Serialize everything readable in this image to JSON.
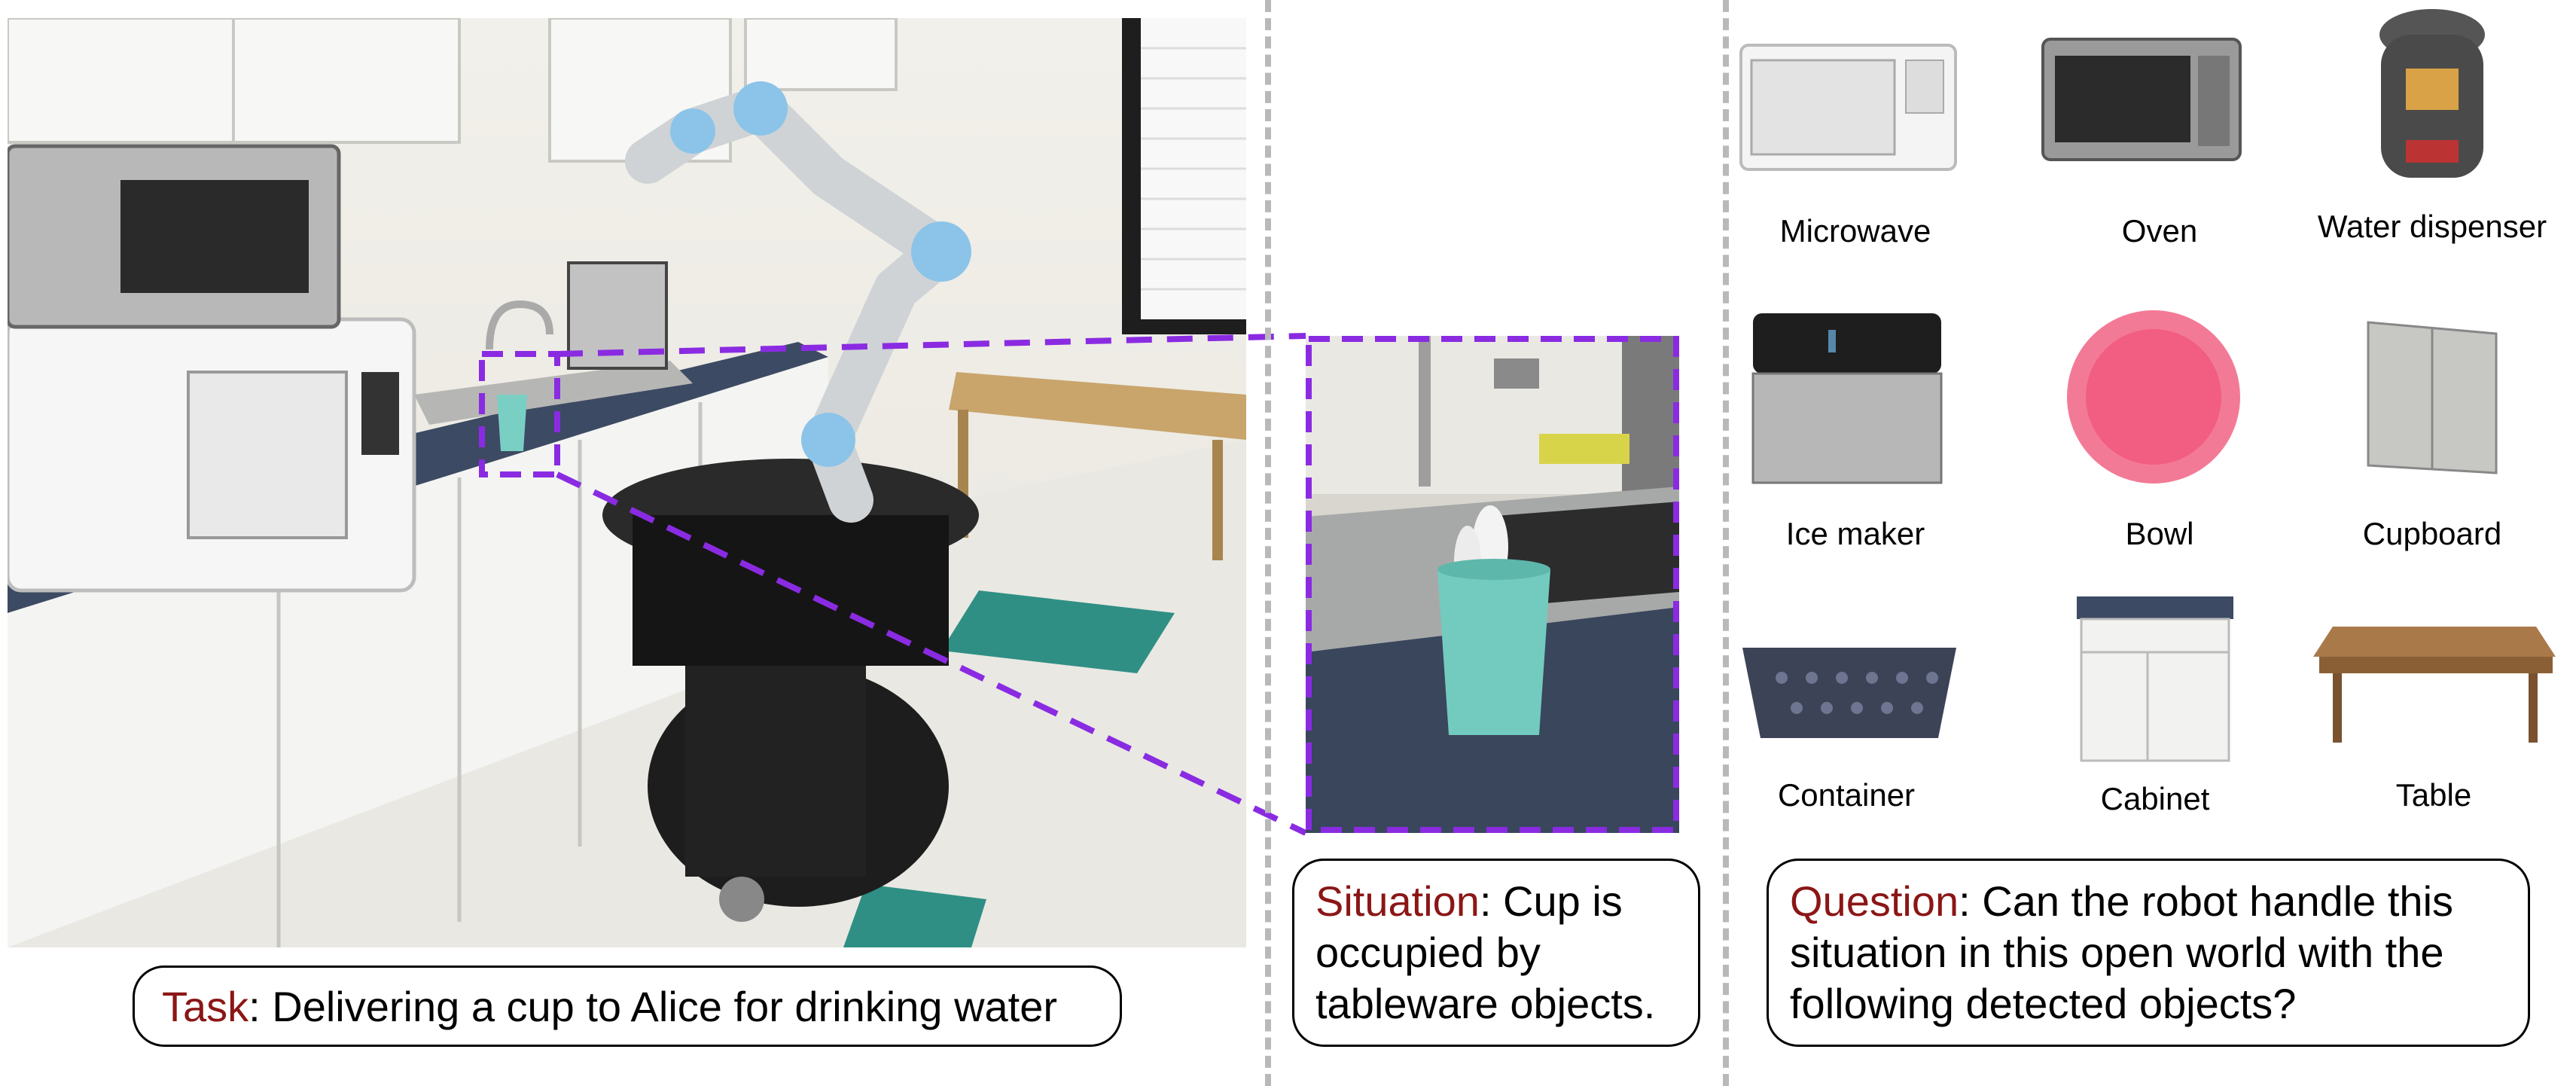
{
  "task": {
    "keyword": "Task",
    "text": ": Delivering a cup to Alice for drinking water"
  },
  "situation": {
    "keyword": "Situation",
    "line1": ": Cup is",
    "line2": "occupied by",
    "line3": "tableware objects."
  },
  "question": {
    "keyword": "Question",
    "line1": ": Can the robot handle this",
    "line2": "situation in this open world with the",
    "line3": "following detected objects?"
  },
  "objects": [
    {
      "label": "Microwave",
      "icon": "microwave-icon"
    },
    {
      "label": "Oven",
      "icon": "oven-icon"
    },
    {
      "label": "Water dispenser",
      "icon": "water-dispenser-icon"
    },
    {
      "label": "Ice maker",
      "icon": "ice-maker-icon"
    },
    {
      "label": "Bowl",
      "icon": "bowl-icon"
    },
    {
      "label": "Cupboard",
      "icon": "cupboard-icon"
    },
    {
      "label": "Container",
      "icon": "container-icon"
    },
    {
      "label": "Cabinet",
      "icon": "cabinet-icon"
    },
    {
      "label": "Table",
      "icon": "table-icon"
    }
  ],
  "colors": {
    "accent": "#8b1616",
    "highlight": "#8a2be2",
    "divider": "#b9b9b9"
  }
}
